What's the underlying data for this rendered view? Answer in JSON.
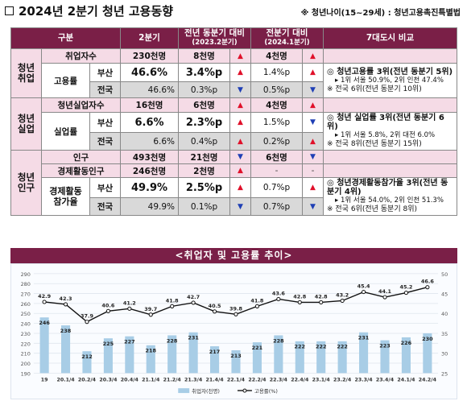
{
  "header": {
    "title": "2024년 2분기 청년 고용동향",
    "note": "※ 청년나이(15~29세) : 청년고용촉진특별법"
  },
  "table": {
    "headers": {
      "category": "구분",
      "quarter": "2분기",
      "yoy": "전년 동분기 대비",
      "yoy_sub": "(2023.2분기)",
      "qoq": "전분기 대비",
      "qoq_sub": "(2024.1분기)",
      "compare": "7대도시 비교"
    },
    "groups": {
      "employment": "청년\n취업",
      "unemployment": "청년\n실업",
      "population": "청년\n인구"
    },
    "rows": {
      "employed": {
        "label": "취업자수",
        "value": "230천명",
        "yoy": "8천명",
        "yoy_dir": "▲",
        "qoq": "4천명",
        "qoq_dir": "▲"
      },
      "emp_rate_label": "고용률",
      "emp_rate_busan": {
        "region": "부산",
        "value": "46.6%",
        "yoy": "3.4%p",
        "yoy_dir": "▲",
        "qoq": "1.4%p",
        "qoq_dir": "▲"
      },
      "emp_rate_nation": {
        "region": "전국",
        "value": "46.6%",
        "yoy": "0.3%p",
        "yoy_dir": "▼",
        "qoq": "0.5%p",
        "qoq_dir": "▼"
      },
      "unemployed": {
        "label": "청년실업자수",
        "value": "16천명",
        "yoy": "6천명",
        "yoy_dir": "▲",
        "qoq": "4천명",
        "qoq_dir": "▲"
      },
      "unemp_rate_label": "실업률",
      "unemp_rate_busan": {
        "region": "부산",
        "value": "6.6%",
        "yoy": "2.3%p",
        "yoy_dir": "▲",
        "qoq": "1.5%p",
        "qoq_dir": "▼"
      },
      "unemp_rate_nation": {
        "region": "전국",
        "value": "6.6%",
        "yoy": "0.4%p",
        "yoy_dir": "▲",
        "qoq": "0.2%p",
        "qoq_dir": "▲"
      },
      "population": {
        "label": "인구",
        "value": "493천명",
        "yoy": "21천명",
        "yoy_dir": "▼",
        "qoq": "6천명",
        "qoq_dir": "▼"
      },
      "econ_pop": {
        "label": "경제활동인구",
        "value": "246천명",
        "yoy": "2천명",
        "yoy_dir": "▲",
        "qoq": "-",
        "qoq_dir": "-"
      },
      "part_rate_label": "경제활동\n참가율",
      "part_rate_busan": {
        "region": "부산",
        "value": "49.9%",
        "yoy": "2.5%p",
        "yoy_dir": "▲",
        "qoq": "0.7%p",
        "qoq_dir": "▲"
      },
      "part_rate_nation": {
        "region": "전국",
        "value": "49.9%",
        "yoy": "0.1%p",
        "yoy_dir": "▼",
        "qoq": "0.7%p",
        "qoq_dir": "▼"
      }
    },
    "compare": {
      "emp": {
        "l1": "◎ 청년고용률 3위(전년 동분기 5위)",
        "l2": "▸ 1위 서울 50.9%, 2위 인천 47.4%",
        "l3": "※ 전국 6위(전년 동분기 10위)"
      },
      "unemp": {
        "l1": "◎ 청년 실업률 3위(전년 동분기 6위)",
        "l2": "▸ 1위 서울 5.8%, 2위 대전 6.0%",
        "l3": "※ 전국 8위(전년 동분기 15위)"
      },
      "part": {
        "l1": "◎ 청년경제활동참가율 3위(전년 동분기 4위)",
        "l2": "▸ 1위 서울 54.0%, 2위 인천 51.3%",
        "l3": "※ 전국 6위(전년 동분기 8위)"
      }
    }
  },
  "chart_title": "<취업자 및 고용률 추이>",
  "chart_data": {
    "type": "bar",
    "categories": [
      "19",
      "20.1/4",
      "20.2/4",
      "20.3/4",
      "20.4/4",
      "21.1/4",
      "21.2/4",
      "21.3/4",
      "21.4/4",
      "22.1/4",
      "22.2/4",
      "22.3/4",
      "22.4/4",
      "23.1/4",
      "23.2/4",
      "23.3/4",
      "23.4/4",
      "24.1/4",
      "24.2/4"
    ],
    "series": [
      {
        "name": "취업자(천명)",
        "type": "bar",
        "axis": "left",
        "values": [
          246,
          238,
          212,
          225,
          227,
          218,
          228,
          231,
          217,
          213,
          221,
          228,
          222,
          222,
          222,
          231,
          223,
          226,
          230
        ]
      },
      {
        "name": "고용률(%)",
        "type": "line",
        "axis": "right",
        "values": [
          42.9,
          42.3,
          37.9,
          40.6,
          41.2,
          39.7,
          41.8,
          42.7,
          40.5,
          39.8,
          41.8,
          43.6,
          42.8,
          42.8,
          43.2,
          45.4,
          44.1,
          45.2,
          46.6
        ]
      }
    ],
    "ylim_left": [
      190,
      290
    ],
    "yticks_left": [
      190,
      200,
      210,
      220,
      230,
      240,
      250,
      260,
      270,
      280,
      290
    ],
    "ylim_right": [
      25,
      50
    ],
    "yticks_right": [
      25,
      30,
      35,
      40,
      45,
      50
    ],
    "grid": true,
    "legend": "bottom",
    "colors": {
      "bar": "#a8cde6",
      "line": "#111111"
    }
  }
}
